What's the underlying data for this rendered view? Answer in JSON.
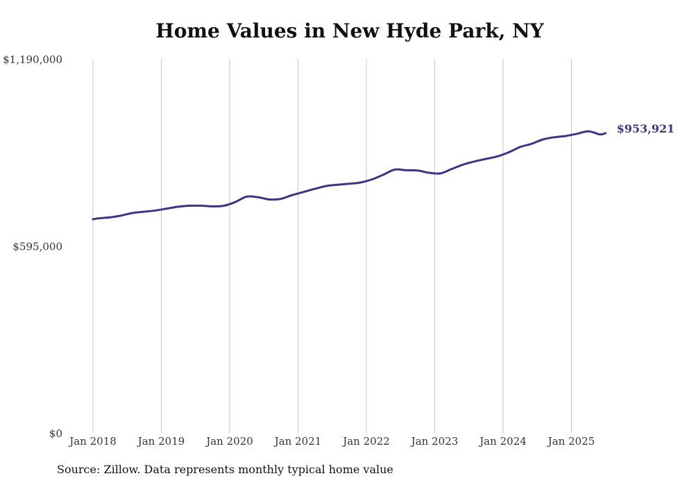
{
  "chart_data": {
    "type": "line",
    "title": "Home Values in New Hyde Park, NY",
    "source": "Source: Zillow. Data represents monthly typical home value",
    "xlabel": "",
    "ylabel": "",
    "x_ticks": [
      "Jan 2018",
      "Jan 2019",
      "Jan 2020",
      "Jan 2021",
      "Jan 2022",
      "Jan 2023",
      "Jan 2024",
      "Jan 2025"
    ],
    "y_ticks": [
      {
        "value": 0,
        "label": "$0"
      },
      {
        "value": 595000,
        "label": "$595,000"
      },
      {
        "value": 1190000,
        "label": "$1,190,000"
      }
    ],
    "ylim": [
      0,
      1190000
    ],
    "grid": "vertical",
    "line_color": "#3a3391",
    "end_label": "$953,921",
    "series": [
      {
        "x": [
          "2018-01",
          "2018-02",
          "2018-04",
          "2018-06",
          "2018-08",
          "2018-10",
          "2018-12",
          "2019-02",
          "2019-04",
          "2019-06",
          "2019-08",
          "2019-10",
          "2019-12",
          "2020-02",
          "2020-04",
          "2020-06",
          "2020-08",
          "2020-10",
          "2020-12",
          "2021-02",
          "2021-04",
          "2021-06",
          "2021-08",
          "2021-10",
          "2021-12",
          "2022-02",
          "2022-04",
          "2022-06",
          "2022-08",
          "2022-10",
          "2022-12",
          "2023-02",
          "2023-04",
          "2023-06",
          "2023-08",
          "2023-10",
          "2023-12",
          "2024-02",
          "2024-04",
          "2024-06",
          "2024-08",
          "2024-10",
          "2024-12",
          "2025-02",
          "2025-04",
          "2025-06",
          "2025-07"
        ],
        "values": [
          680000,
          683000,
          686000,
          692000,
          700000,
          704000,
          708000,
          714000,
          720000,
          723000,
          723000,
          721000,
          723000,
          735000,
          752000,
          750000,
          743000,
          745000,
          757000,
          767000,
          777000,
          786000,
          790000,
          793000,
          797000,
          807000,
          822000,
          838000,
          836000,
          835000,
          828000,
          826000,
          840000,
          854000,
          864000,
          872000,
          880000,
          893000,
          910000,
          920000,
          934000,
          941000,
          945000,
          952000,
          960000,
          950000,
          953921
        ]
      }
    ]
  }
}
